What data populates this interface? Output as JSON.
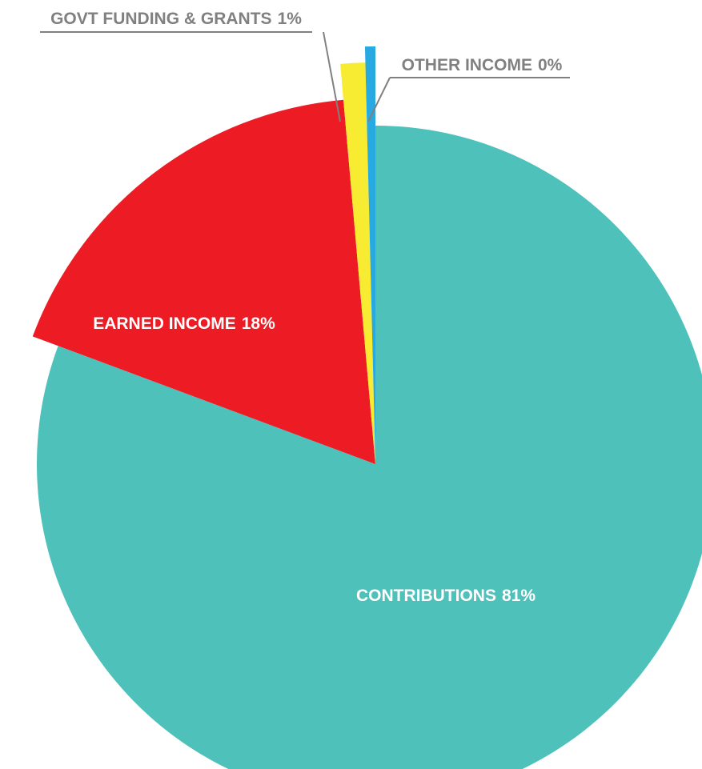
{
  "chart_data": {
    "type": "pie",
    "categories": [
      "CONTRIBUTIONS",
      "EARNED INCOME",
      "GOVT FUNDING & GRANTS",
      "OTHER INCOME"
    ],
    "values": [
      81,
      18,
      1,
      0.4
    ],
    "value_labels": [
      "81%",
      "18%",
      "1%",
      "0%"
    ],
    "colors": [
      "#4fc1bb",
      "#ed1c24",
      "#f7ec32",
      "#27aae1"
    ]
  }
}
